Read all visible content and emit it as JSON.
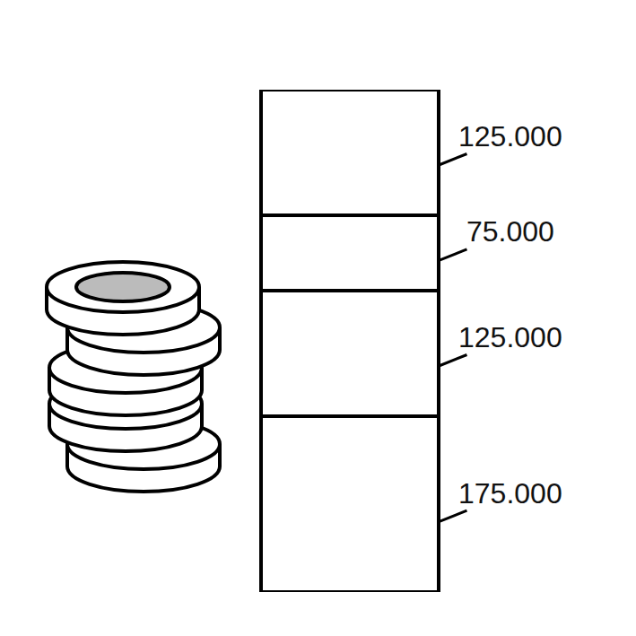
{
  "chart_data": {
    "type": "bar",
    "stacked": true,
    "tick_labels": false,
    "grid": false,
    "categories": [
      null
    ],
    "ylim": [
      0,
      500000
    ],
    "data_labels": true,
    "series": [
      {
        "color": "#ffffff",
        "values": [
          175000
        ],
        "value_labels": [
          "175.000"
        ]
      },
      {
        "color": "#ffffff",
        "values": [
          125000
        ],
        "value_labels": [
          "125.000"
        ]
      },
      {
        "color": "#ffffff",
        "values": [
          75000
        ],
        "value_labels": [
          "75.000"
        ]
      },
      {
        "color": "#ffffff",
        "values": [
          125000
        ],
        "value_labels": [
          "125.000"
        ]
      }
    ]
  }
}
